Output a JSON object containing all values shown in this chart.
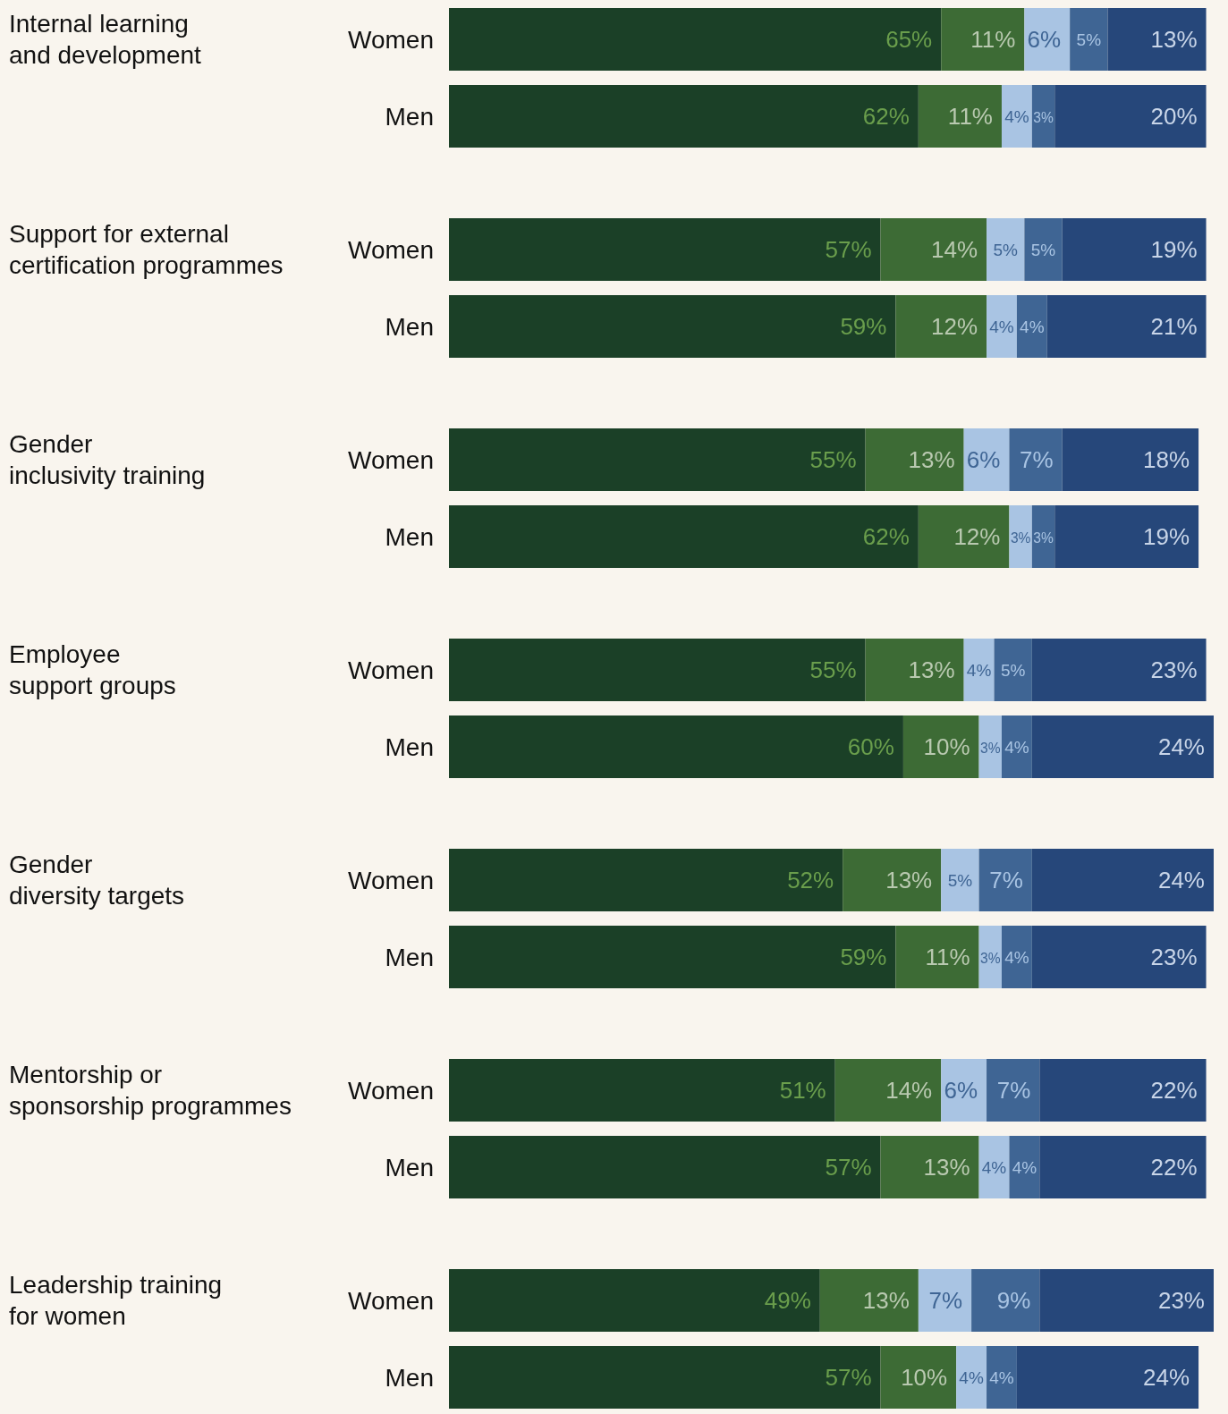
{
  "chart_data": {
    "type": "bar",
    "orientation": "horizontal",
    "stacked": true,
    "categories": [
      "Women",
      "Men",
      "Women",
      "Men",
      "Women",
      "Men",
      "Women",
      "Men",
      "Women",
      "Men",
      "Women",
      "Men",
      "Women",
      "Men"
    ],
    "annotations": [
      "Internal learning\nand development",
      "Support for external\ncertification programmes",
      "Gender\ninclusivity training",
      "Employee\nsupport groups",
      "Gender\ndiversity targets",
      "Mentorship or\nsponsorship programmes",
      "Leadership training\nfor women"
    ],
    "xlim": [
      0,
      101
    ],
    "series": [
      {
        "color": "#1b4027",
        "values": [
          65,
          62,
          57,
          59,
          55,
          62,
          55,
          60,
          52,
          59,
          51,
          57,
          49,
          57
        ],
        "value_labels": [
          "65%",
          "62%",
          "57%",
          "59%",
          "55%",
          "62%",
          "55%",
          "60%",
          "52%",
          "59%",
          "51%",
          "57%",
          "49%",
          "57%"
        ]
      },
      {
        "color": "#3d6b35",
        "values": [
          11,
          11,
          14,
          12,
          13,
          12,
          13,
          10,
          13,
          11,
          14,
          13,
          13,
          10
        ],
        "value_labels": [
          "11%",
          "11%",
          "14%",
          "12%",
          "13%",
          "12%",
          "13%",
          "10%",
          "13%",
          "11%",
          "14%",
          "13%",
          "13%",
          "10%"
        ]
      },
      {
        "color": "#a9c4e3",
        "values": [
          6,
          4,
          5,
          4,
          6,
          3,
          4,
          3,
          5,
          3,
          6,
          4,
          7,
          4
        ],
        "value_labels": [
          "6%",
          "4%",
          "5%",
          "4%",
          "6%",
          "3%",
          "4%",
          "3%",
          "5%",
          "3%",
          "6%",
          "4%",
          "7%",
          "4%"
        ]
      },
      {
        "color": "#3f6594",
        "values": [
          5,
          3,
          5,
          4,
          7,
          3,
          5,
          4,
          7,
          4,
          7,
          4,
          9,
          4
        ],
        "value_labels": [
          "5%",
          "3%",
          "5%",
          "4%",
          "7%",
          "3%",
          "5%",
          "4%",
          "7%",
          "4%",
          "7%",
          "4%",
          "9%",
          "4%"
        ]
      },
      {
        "color": "#26477a",
        "values": [
          13,
          20,
          19,
          21,
          18,
          19,
          23,
          24,
          24,
          23,
          22,
          22,
          23,
          24
        ],
        "value_labels": [
          "13%",
          "20%",
          "19%",
          "21%",
          "18%",
          "19%",
          "23%",
          "24%",
          "24%",
          "23%",
          "22%",
          "22%",
          "23%",
          "24%"
        ]
      }
    ]
  }
}
